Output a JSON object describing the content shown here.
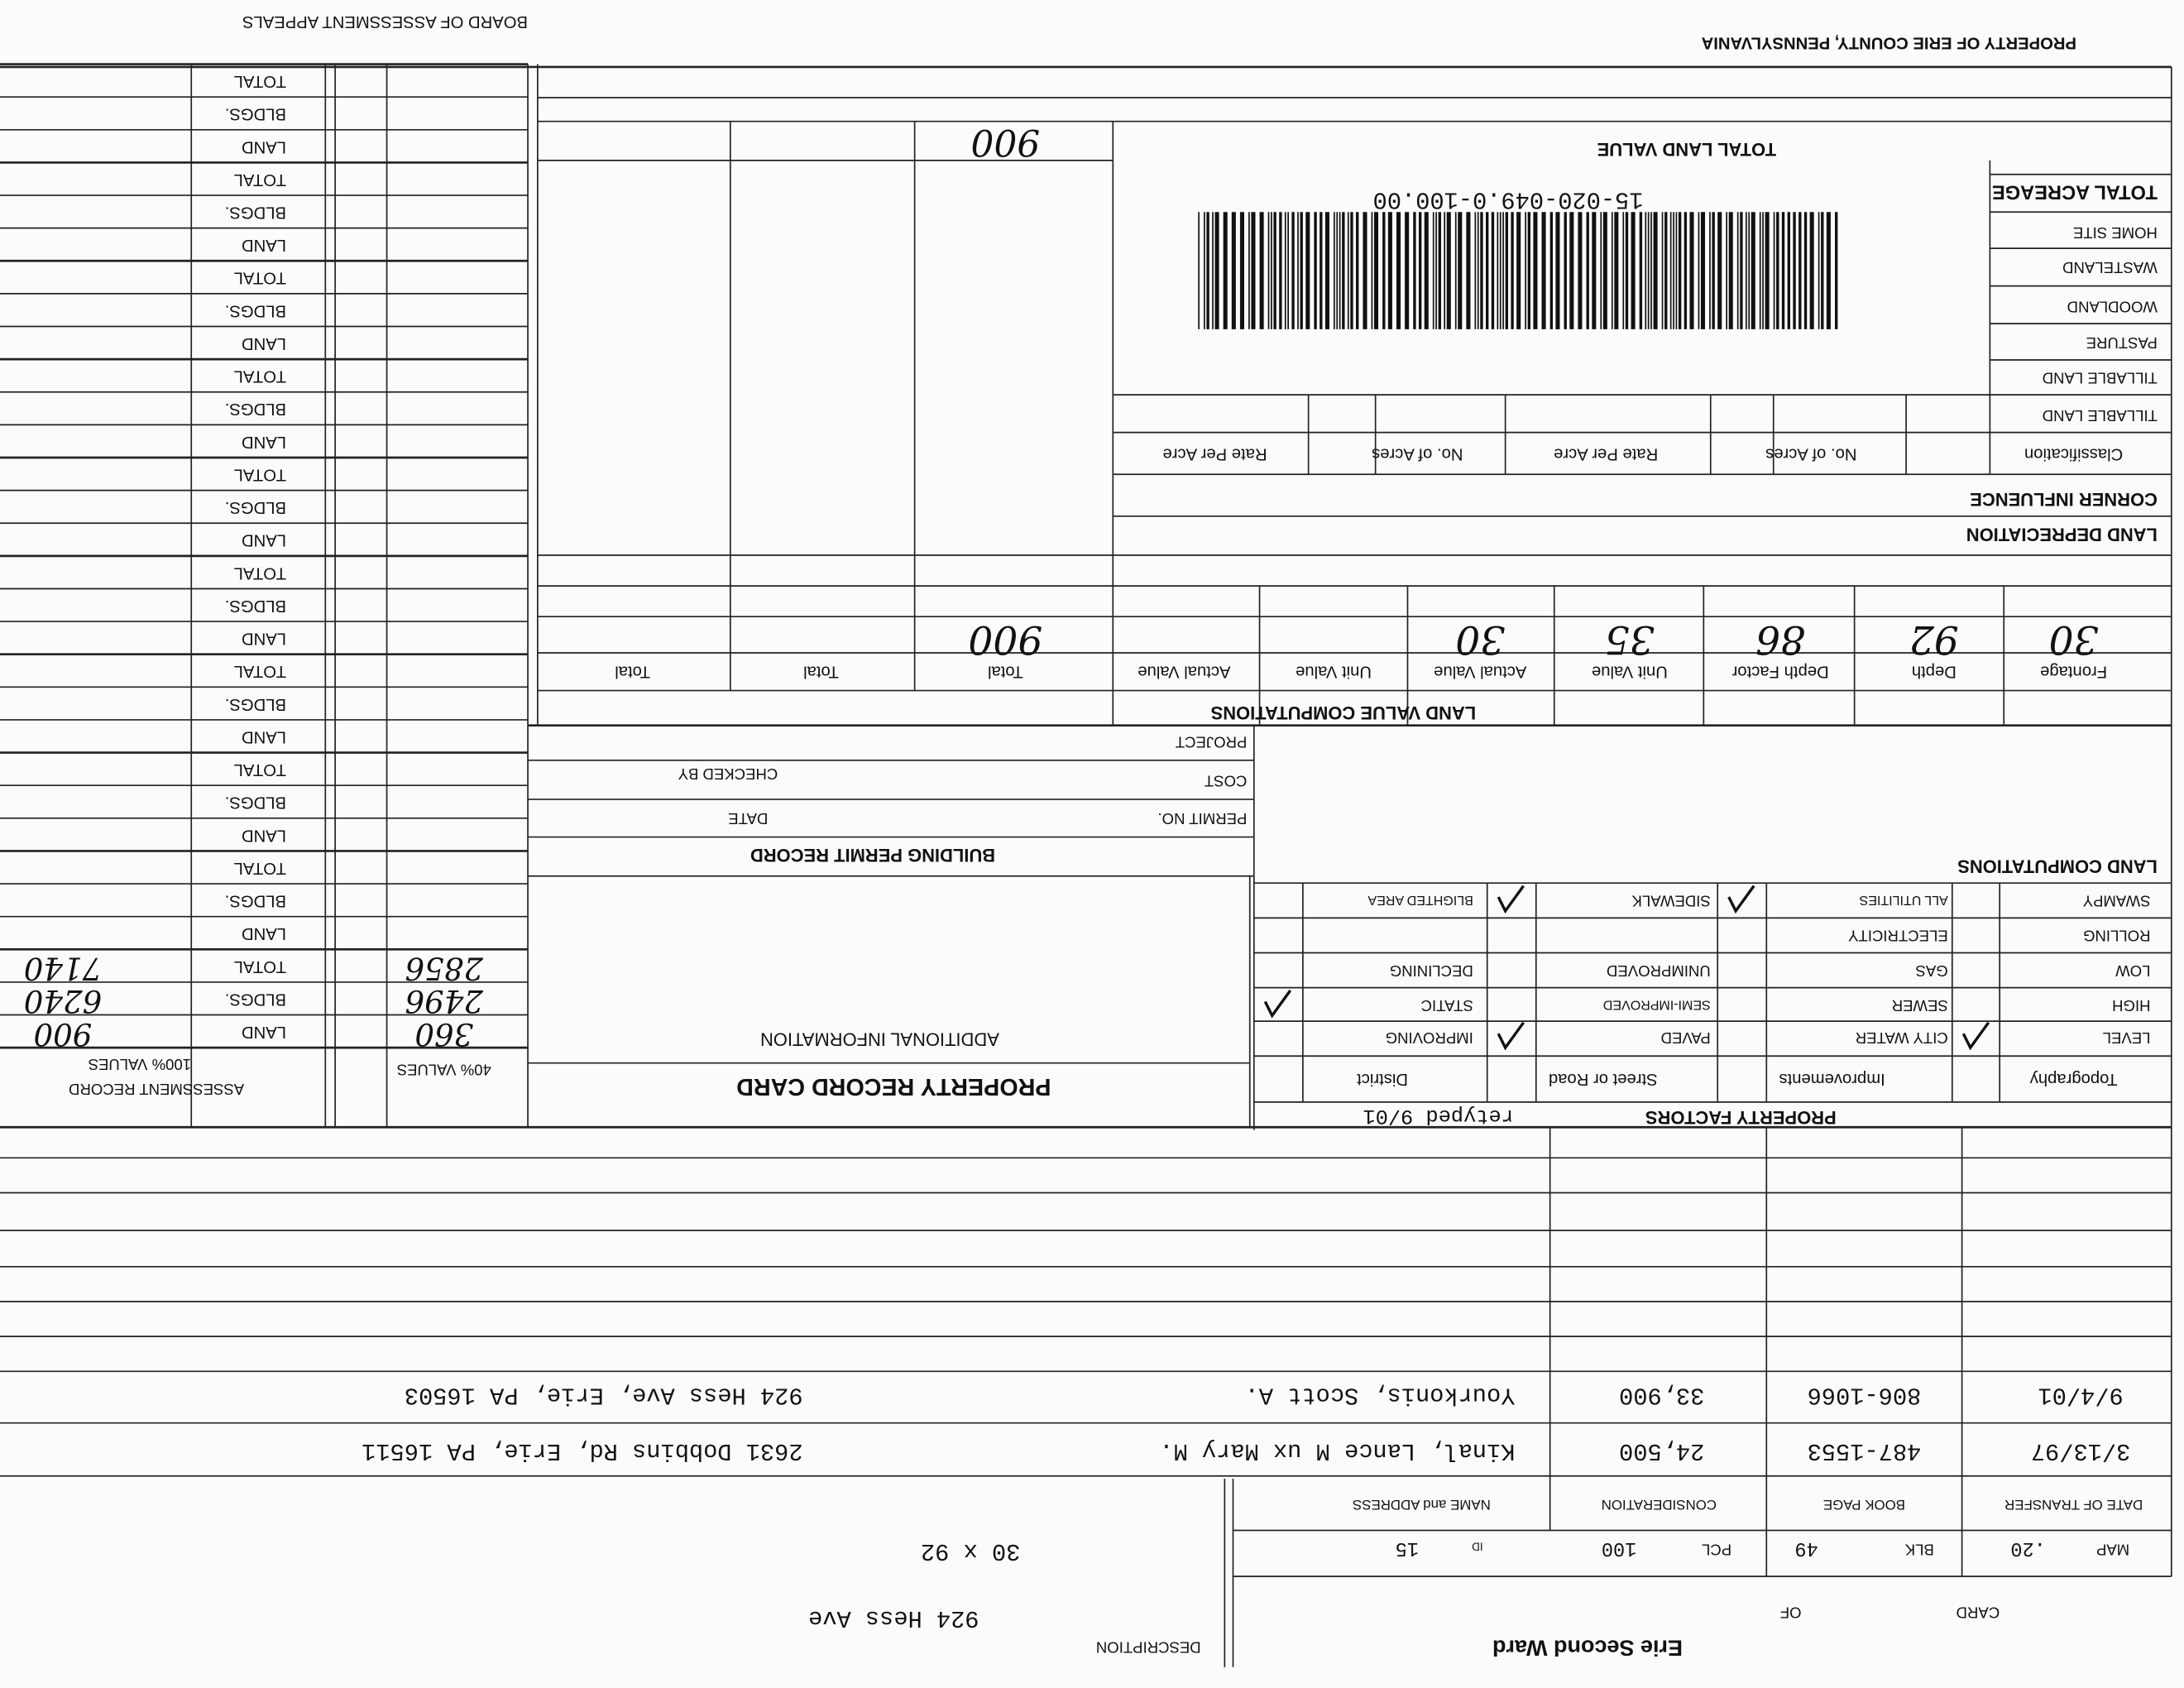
{
  "header": {
    "owner": "PROPERTY OF ERIE COUNTY, PENNSYLVANIA",
    "board": "BOARD OF ASSESSMENT APPEALS"
  },
  "card": {
    "card_label": "CARD",
    "of_label": "OF",
    "ward": "Erie Second Ward",
    "map_label": "MAP",
    "map": ".20",
    "blk_label": "BLK",
    "blk": "49",
    "pcl_label": "PCL",
    "pcl": "100",
    "id_label": "ID",
    "id": "15",
    "description_label": "DESCRIPTION",
    "address": "924 Hess Ave",
    "dimensions": "30 x 92"
  },
  "transfers": {
    "headers": [
      "DATE OF TRANSFER",
      "BOOK PAGE",
      "CONSIDERATION",
      "NAME and ADDRESS"
    ],
    "rows": [
      [
        "3/13/97",
        "487-1553",
        "24,500",
        "Kinal, Lance M ux Mary M.",
        "2631 Dobbins Rd, Erie, PA 16511"
      ],
      [
        "9/4/01",
        "806-1066",
        "33,900",
        "Yourkonis, Scott A.",
        "924 Hess Ave, Erie, PA 16503"
      ]
    ]
  },
  "property_factors": {
    "title": "PROPERTY FACTORS",
    "note": "retyped 9/01",
    "columns": [
      {
        "header": "Topography",
        "items": [
          {
            "label": "LEVEL",
            "checked": true
          },
          {
            "label": "HIGH",
            "checked": false
          },
          {
            "label": "LOW",
            "checked": false
          },
          {
            "label": "ROLLING",
            "checked": false
          },
          {
            "label": "SWAMPY",
            "checked": false
          }
        ]
      },
      {
        "header": "Improvements",
        "items": [
          {
            "label": "CITY WATER",
            "checked": false
          },
          {
            "label": "SEWER",
            "checked": false
          },
          {
            "label": "GAS",
            "checked": false
          },
          {
            "label": "ELECTRICITY",
            "checked": false
          },
          {
            "label": "ALL UTILITIES",
            "checked": true
          }
        ]
      },
      {
        "header": "Street or Road",
        "items": [
          {
            "label": "PAVED",
            "checked": true
          },
          {
            "label": "SEMI-IMPROVED",
            "checked": false
          },
          {
            "label": "UNIMPROVED",
            "checked": false
          },
          null,
          {
            "label": "SIDEWALK",
            "checked": true
          }
        ]
      },
      {
        "header": "District",
        "items": [
          {
            "label": "IMPROVING",
            "checked": false
          },
          {
            "label": "STATIC",
            "checked": true
          },
          {
            "label": "DECLINING",
            "checked": false
          },
          null,
          {
            "label": "BLIGHTED AREA",
            "checked": false
          }
        ]
      }
    ]
  },
  "land_computations": {
    "title": "LAND COMPUTATIONS"
  },
  "record_card": {
    "title": "PROPERTY RECORD CARD",
    "additional": "ADDITIONAL INFORMATION"
  },
  "permit": {
    "title": "BUILDING PERMIT RECORD",
    "permit_no": "PERMIT NO.",
    "date": "DATE",
    "cost": "COST",
    "checked_by": "CHECKED BY",
    "project": "PROJECT"
  },
  "assessment": {
    "title": "ASSESSMENT RECORD",
    "pct40": "40% VALUES",
    "pct100": "100% VALUES",
    "groups": [
      {
        "labels": [
          "LAND",
          "BLDGS.",
          "TOTAL"
        ],
        "values_40": [
          360,
          2496,
          2856
        ],
        "values_100": [
          900,
          6240,
          7140
        ]
      },
      {
        "labels": [
          "LAND",
          "BLDGS.",
          "TOTAL"
        ]
      },
      {
        "labels": [
          "LAND",
          "BLDGS.",
          "TOTAL"
        ]
      },
      {
        "labels": [
          "LAND",
          "BLDGS.",
          "TOTAL"
        ]
      },
      {
        "labels": [
          "LAND",
          "BLDGS.",
          "TOTAL"
        ]
      },
      {
        "labels": [
          "LAND",
          "BLDGS.",
          "TOTAL"
        ]
      },
      {
        "labels": [
          "LAND",
          "BLDGS.",
          "TOTAL"
        ]
      },
      {
        "labels": [
          "LAND",
          "BLDGS.",
          "TOTAL"
        ]
      },
      {
        "labels": [
          "LAND",
          "BLDGS.",
          "TOTAL"
        ]
      },
      {
        "labels": [
          "LAND",
          "BLDGS.",
          "TOTAL"
        ]
      }
    ]
  },
  "land_value": {
    "title": "LAND VALUE COMPUTATIONS",
    "headers": [
      "Frontage",
      "Depth",
      "Depth Factor",
      "Unit Value",
      "Actual Value",
      "Unit Value",
      "Actual Value",
      "Total",
      "Total",
      "Total"
    ],
    "values": [
      30,
      92,
      86,
      35,
      30,
      null,
      null,
      900,
      null,
      null
    ],
    "depreciation": "LAND DEPRECIATION",
    "corner": "CORNER INFLUENCE",
    "acreage_headers": [
      "Classification",
      "No. of Acres",
      "Rate Per Acre",
      "No. of Acres",
      "Rate Per Acre"
    ],
    "acreage_rows": [
      "TILLABLE LAND",
      "TILLABLE LAND",
      "PASTURE",
      "WOODLAND",
      "WASTELAND",
      "HOME SITE",
      "TOTAL ACREAGE"
    ],
    "total_label": "TOTAL LAND VALUE",
    "total": 900,
    "parcel_id": "15-020-049.0-100.00"
  }
}
